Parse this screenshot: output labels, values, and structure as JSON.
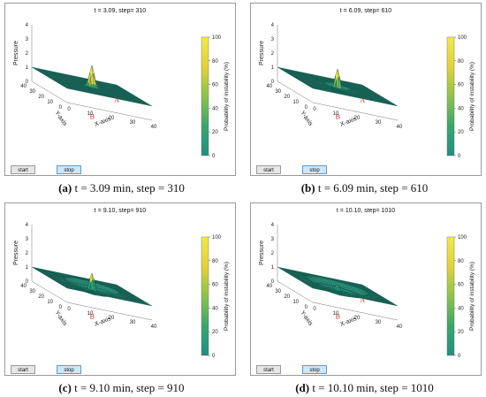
{
  "panels": [
    {
      "status": "t =  3.09, step= 310",
      "caption_letter": "(a)",
      "caption_text": " t = 3.09 min, step = 310",
      "spike_height": 1.5,
      "ring_radius": 0.0,
      "ring_depth": 0.0,
      "ring_count": 0,
      "show_a_label": true
    },
    {
      "status": "t =  6.09, step= 610",
      "caption_letter": "(b)",
      "caption_text": " t = 6.09 min, step = 610",
      "spike_height": 1.6,
      "ring_radius": 6.0,
      "ring_depth": 0.45,
      "ring_count": 1,
      "show_a_label": true
    },
    {
      "status": "t =  9.10, step= 910",
      "caption_letter": "(c)",
      "caption_text": " t = 9.10 min, step = 910",
      "spike_height": 1.4,
      "ring_radius": 12.0,
      "ring_depth": 0.6,
      "ring_count": 2,
      "show_a_label": false
    },
    {
      "status": "t =  10.10, step= 1010",
      "caption_letter": "(d)",
      "caption_text": " t = 10.10 min, step = 1010",
      "spike_height": 0.6,
      "ring_radius": 14.0,
      "ring_depth": 0.6,
      "ring_count": 3,
      "show_a_label": true
    }
  ],
  "axes": {
    "z_label": "Pressure",
    "x_label": "X-axis",
    "y_label": "Y-axis",
    "z_ticks": [
      "0",
      "1",
      "2",
      "3",
      "4"
    ],
    "x_ticks": [
      "0",
      "10",
      "20",
      "30",
      "40"
    ],
    "y_ticks": [
      "0",
      "10",
      "20",
      "30",
      "40"
    ]
  },
  "colorbar": {
    "label": "Probability of instability (%)",
    "ticks": [
      "0",
      "20",
      "40",
      "60",
      "80",
      "100"
    ],
    "colors": [
      "#1f8f86",
      "#3aa66c",
      "#8cc34a",
      "#e3d13a",
      "#f3e84a"
    ]
  },
  "markers": {
    "a": "A",
    "b": "B"
  },
  "buttons": {
    "start": "start",
    "stop": "stop"
  }
}
